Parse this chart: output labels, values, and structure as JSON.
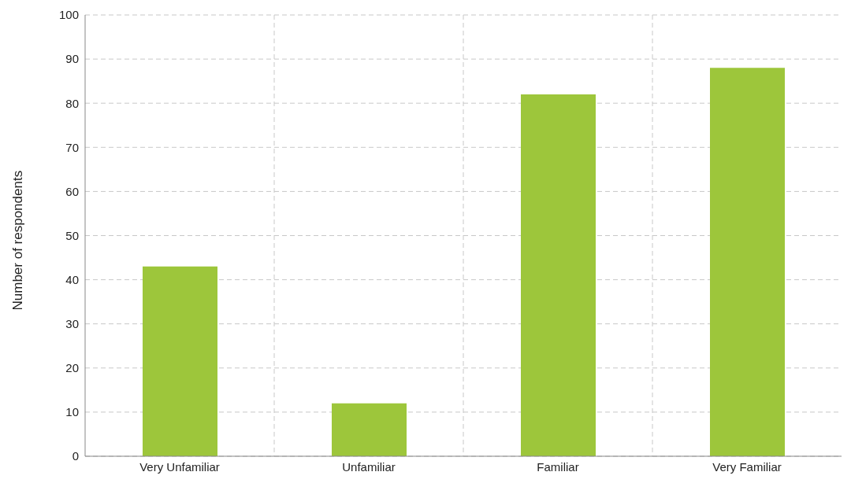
{
  "chart_data": {
    "type": "bar",
    "ylabel": "Number of respondents",
    "categories": [
      "Very Unfamiliar",
      "Unfamiliar",
      "Familiar",
      "Very Familiar"
    ],
    "values": [
      43,
      12,
      82,
      88
    ],
    "color": "#9dc63b",
    "ylim": [
      0,
      100
    ],
    "yticks": [
      0,
      10,
      20,
      30,
      40,
      50,
      60,
      70,
      80,
      90,
      100
    ],
    "grid": true
  }
}
